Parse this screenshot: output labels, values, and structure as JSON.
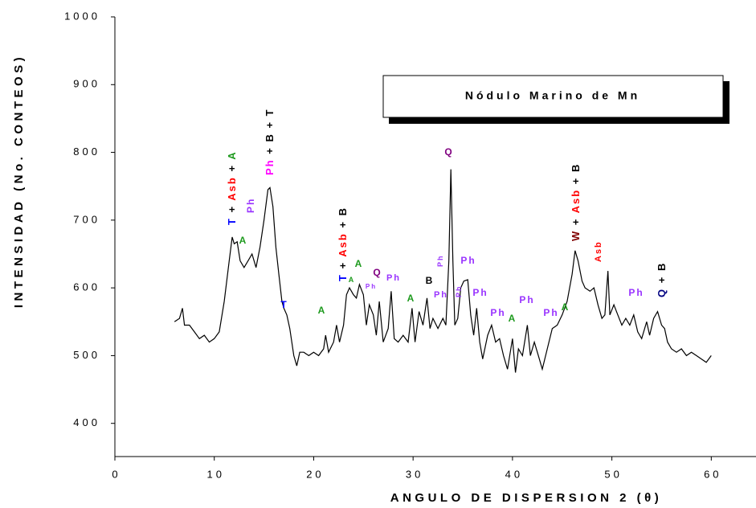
{
  "chart_data": {
    "type": "line",
    "title": "Nódulo Marino de Mn",
    "x_label": "ANGULO DE DISPERSION 2 (θ)",
    "y_label": "INTENSIDAD (No. CONTEOS)",
    "xlim": [
      0,
      64.5
    ],
    "xticks": [
      0,
      10,
      20,
      30,
      40,
      50,
      60
    ],
    "ylim": [
      351,
      1000
    ],
    "yticks": [
      400,
      500,
      600,
      700,
      800,
      900,
      1000
    ],
    "color": "#000000",
    "x": [
      6.0,
      6.5,
      6.8,
      7.0,
      7.5,
      8.0,
      8.5,
      9.0,
      9.5,
      10.0,
      10.5,
      11.0,
      11.5,
      11.8,
      12.0,
      12.3,
      12.6,
      13.0,
      13.4,
      13.8,
      14.2,
      14.6,
      15.0,
      15.4,
      15.6,
      15.9,
      16.2,
      16.5,
      16.8,
      17.0,
      17.3,
      17.6,
      18.0,
      18.3,
      18.6,
      19.0,
      19.5,
      20.0,
      20.5,
      21.0,
      21.2,
      21.5,
      22.0,
      22.3,
      22.6,
      23.0,
      23.3,
      23.6,
      24.0,
      24.3,
      24.6,
      25.0,
      25.3,
      25.6,
      26.0,
      26.3,
      26.6,
      27.0,
      27.5,
      27.8,
      28.1,
      28.5,
      29.0,
      29.5,
      29.9,
      30.2,
      30.6,
      31.0,
      31.4,
      31.7,
      32.0,
      32.5,
      33.0,
      33.3,
      33.6,
      33.8,
      34.0,
      34.2,
      34.5,
      34.8,
      35.1,
      35.5,
      35.8,
      36.1,
      36.4,
      36.7,
      37.0,
      37.5,
      37.9,
      38.3,
      38.7,
      39.1,
      39.5,
      40.0,
      40.3,
      40.6,
      41.0,
      41.5,
      41.8,
      42.2,
      42.6,
      43.0,
      43.5,
      44.0,
      44.5,
      45.0,
      45.5,
      46.0,
      46.3,
      46.6,
      47.0,
      47.3,
      47.8,
      48.2,
      48.6,
      49.0,
      49.3,
      49.6,
      49.8,
      50.2,
      50.6,
      51.0,
      51.4,
      51.8,
      52.2,
      52.6,
      53.0,
      53.5,
      53.8,
      54.2,
      54.6,
      55.0,
      55.3,
      55.6,
      56.0,
      56.5,
      57.0,
      57.5,
      58.0,
      58.5,
      59.0,
      59.5,
      60.0
    ],
    "values": [
      550,
      555,
      570,
      545,
      545,
      535,
      525,
      530,
      520,
      525,
      535,
      580,
      640,
      675,
      665,
      668,
      640,
      630,
      640,
      650,
      630,
      660,
      700,
      745,
      748,
      720,
      660,
      620,
      580,
      570,
      560,
      540,
      500,
      485,
      505,
      505,
      500,
      505,
      500,
      510,
      530,
      505,
      520,
      545,
      520,
      545,
      590,
      600,
      590,
      585,
      605,
      590,
      545,
      575,
      560,
      530,
      580,
      520,
      540,
      595,
      525,
      520,
      530,
      520,
      570,
      520,
      565,
      545,
      585,
      540,
      555,
      540,
      555,
      545,
      640,
      775,
      640,
      545,
      555,
      600,
      610,
      612,
      560,
      530,
      570,
      520,
      495,
      530,
      545,
      520,
      525,
      500,
      480,
      525,
      475,
      510,
      500,
      545,
      500,
      520,
      500,
      480,
      510,
      540,
      545,
      560,
      580,
      620,
      655,
      640,
      610,
      600,
      595,
      600,
      575,
      555,
      560,
      625,
      560,
      575,
      560,
      545,
      555,
      545,
      560,
      535,
      525,
      550,
      530,
      555,
      565,
      545,
      540,
      520,
      510,
      505,
      510,
      500,
      505,
      500,
      495,
      490,
      500
    ],
    "annotations": [
      {
        "vertical": true,
        "parts": [
          {
            "text": "T",
            "color": "#0000ff"
          },
          {
            "text": " + ",
            "color": "#000000"
          },
          {
            "text": "Asb",
            "color": "#ff0000"
          },
          {
            "text": " + ",
            "color": "#000000"
          },
          {
            "text": "A",
            "color": "#1e9a1e"
          }
        ]
      },
      {
        "vertical": true,
        "parts": [
          {
            "text": "Ph",
            "color": "#9933ff"
          }
        ]
      },
      {
        "vertical": true,
        "parts": [
          {
            "text": "Ph",
            "color": "#ff00ff"
          },
          {
            "text": " + B + T",
            "color": "#000000"
          }
        ]
      },
      {
        "vertical": true,
        "parts": [
          {
            "text": "T",
            "color": "#0000ff"
          },
          {
            "text": " + ",
            "color": "#000000"
          },
          {
            "text": "Asb",
            "color": "#ff0000"
          },
          {
            "text": " + B",
            "color": "#000000"
          }
        ]
      },
      {
        "vertical": true,
        "parts": [
          {
            "text": "W",
            "color": "#800000"
          },
          {
            "text": " + ",
            "color": "#000000"
          },
          {
            "text": "Asb",
            "color": "#ff0000"
          },
          {
            "text": " + B",
            "color": "#000000"
          }
        ]
      },
      {
        "vertical": true,
        "parts": [
          {
            "text": "Asb",
            "color": "#ff0000"
          }
        ]
      },
      {
        "vertical": true,
        "parts": [
          {
            "text": "Q",
            "color": "#000080"
          },
          {
            "text": " + B",
            "color": "#000000"
          }
        ]
      },
      {
        "vertical": true,
        "parts": [
          {
            "text": "Ph",
            "color": "#9933ff"
          }
        ]
      },
      {
        "vertical": true,
        "parts": [
          {
            "text": "Ph",
            "color": "#9933ff"
          }
        ]
      },
      {
        "vertical": false,
        "parts": [
          {
            "text": "A",
            "color": "#1e9a1e"
          }
        ]
      },
      {
        "vertical": false,
        "parts": [
          {
            "text": "T",
            "color": "#0000ff"
          }
        ]
      },
      {
        "vertical": false,
        "parts": [
          {
            "text": "A",
            "color": "#1e9a1e"
          }
        ]
      },
      {
        "vertical": false,
        "parts": [
          {
            "text": "A",
            "color": "#1e9a1e"
          }
        ]
      },
      {
        "vertical": false,
        "parts": [
          {
            "text": "A",
            "color": "#1e9a1e"
          }
        ]
      },
      {
        "vertical": false,
        "parts": [
          {
            "text": "Ph",
            "color": "#9933ff"
          }
        ]
      },
      {
        "vertical": false,
        "parts": [
          {
            "text": "Q",
            "color": "#800080"
          }
        ]
      },
      {
        "vertical": false,
        "parts": [
          {
            "text": "Ph",
            "color": "#9933ff"
          }
        ]
      },
      {
        "vertical": false,
        "parts": [
          {
            "text": "A",
            "color": "#1e9a1e"
          }
        ]
      },
      {
        "vertical": false,
        "parts": [
          {
            "text": "B",
            "color": "#000000"
          }
        ]
      },
      {
        "vertical": false,
        "parts": [
          {
            "text": "Ph",
            "color": "#9933ff"
          }
        ]
      },
      {
        "vertical": false,
        "parts": [
          {
            "text": "Q",
            "color": "#800080"
          }
        ]
      },
      {
        "vertical": false,
        "parts": [
          {
            "text": "Ph",
            "color": "#9933ff"
          }
        ]
      },
      {
        "vertical": false,
        "parts": [
          {
            "text": "Ph",
            "color": "#9933ff"
          }
        ]
      },
      {
        "vertical": false,
        "parts": [
          {
            "text": "Ph",
            "color": "#9933ff"
          }
        ]
      },
      {
        "vertical": false,
        "parts": [
          {
            "text": "A",
            "color": "#1e9a1e"
          }
        ]
      },
      {
        "vertical": false,
        "parts": [
          {
            "text": "Ph",
            "color": "#9933ff"
          }
        ]
      },
      {
        "vertical": false,
        "parts": [
          {
            "text": "Ph",
            "color": "#9933ff"
          }
        ]
      },
      {
        "vertical": false,
        "parts": [
          {
            "text": "A",
            "color": "#1e9a1e"
          }
        ]
      },
      {
        "vertical": false,
        "parts": [
          {
            "text": "Ph",
            "color": "#9933ff"
          }
        ]
      }
    ]
  }
}
